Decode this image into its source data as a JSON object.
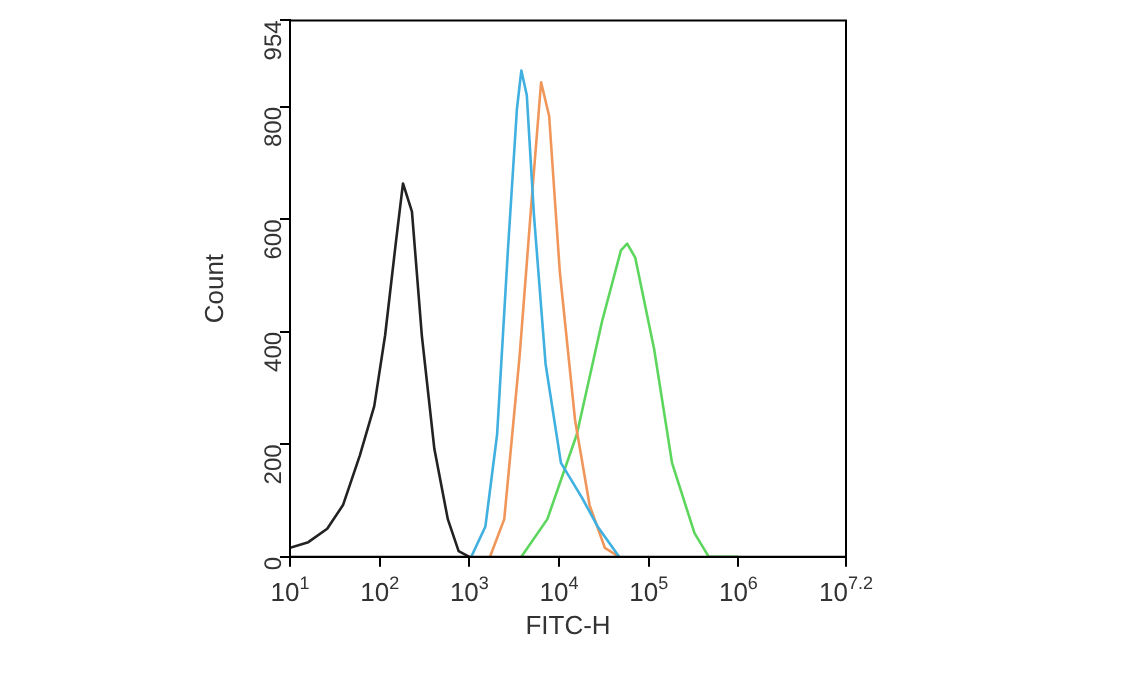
{
  "chart_data": {
    "type": "line",
    "xlabel": "FITC-H",
    "ylabel": "Count",
    "log": "x",
    "grid": false,
    "legend": false,
    "marker": "none",
    "line_style": "solid",
    "xlim": [
      10,
      15848932
    ],
    "ylim": [
      0,
      954
    ],
    "xticks": [
      {
        "value": 10,
        "label": "10$^{1}$"
      },
      {
        "value": 100,
        "label": "10$^{2}$"
      },
      {
        "value": 1000,
        "label": "10$^{3}$"
      },
      {
        "value": 10000,
        "label": "10$^{4}$"
      },
      {
        "value": 100000,
        "label": "10$^{5}$"
      },
      {
        "value": 1000000,
        "label": "10$^{6}$"
      },
      {
        "value": 15848932,
        "label": "10$^{7.2}$"
      }
    ],
    "yticks": [
      0,
      200,
      400,
      600,
      800,
      954
    ],
    "series": [
      {
        "color": "#222222",
        "x": [
          10,
          16,
          26,
          39,
          60,
          87,
          115,
          151,
          182,
          229,
          295,
          407,
          575,
          759,
          1000
        ],
        "values": [
          16,
          26,
          50,
          92,
          180,
          268,
          394,
          557,
          664,
          614,
          394,
          192,
          67,
          10,
          0
        ]
      },
      {
        "color": "#3fb0e0",
        "x": [
          1050,
          1510,
          2040,
          2690,
          3390,
          3800,
          4370,
          5250,
          7080,
          10500,
          18200,
          26900,
          46800
        ],
        "values": [
          0,
          54,
          218,
          545,
          796,
          865,
          821,
          608,
          343,
          167,
          104,
          54,
          0
        ]
      },
      {
        "color": "#f0965a",
        "x": [
          1700,
          2450,
          3630,
          5010,
          6310,
          7760,
          10200,
          15100,
          21900,
          32400,
          46800
        ],
        "values": [
          0,
          67,
          356,
          645,
          844,
          784,
          507,
          243,
          92,
          16,
          0
        ]
      },
      {
        "color": "#5cd65c",
        "x": [
          3800,
          7410,
          15800,
          30200,
          49000,
          57500,
          70800,
          115000,
          182000,
          324000,
          468000,
          1000000
        ],
        "values": [
          0,
          67,
          218,
          419,
          545,
          557,
          532,
          369,
          167,
          42,
          0,
          0
        ]
      }
    ]
  }
}
